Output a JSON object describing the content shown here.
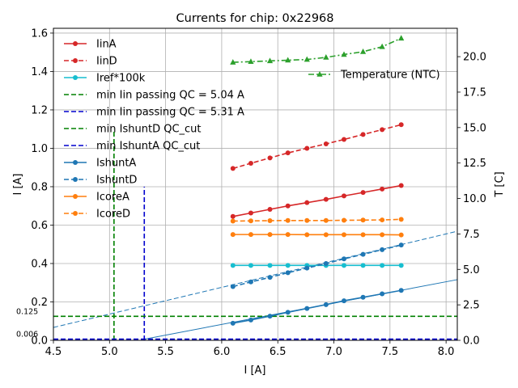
{
  "chart_data": {
    "type": "line",
    "title": "Currents for chip: 0x22968",
    "xlabel": "I [A]",
    "ylabel_left": "I [A]",
    "ylabel_right": "T [C]",
    "xlim": [
      4.5,
      8.1
    ],
    "ylim_left": [
      0.0,
      1.625
    ],
    "ylim_right": [
      0.0,
      22.0
    ],
    "grid": true,
    "x_ticks": [
      4.5,
      5.0,
      5.5,
      6.0,
      6.5,
      7.0,
      7.5,
      8.0
    ],
    "y_ticks_left": [
      0.0,
      0.2,
      0.4,
      0.6,
      0.8,
      1.0,
      1.2,
      1.4,
      1.6
    ],
    "y_ticks_right": [
      0.0,
      2.5,
      5.0,
      7.5,
      10.0,
      12.5,
      15.0,
      17.5,
      20.0
    ],
    "x": [
      6.1,
      6.26,
      6.43,
      6.59,
      6.76,
      6.93,
      7.09,
      7.26,
      7.43,
      7.6
    ],
    "series": [
      {
        "name": "IinA",
        "color": "#d62728",
        "style": "solid",
        "marker": "circle",
        "values": [
          0.645,
          0.663,
          0.682,
          0.7,
          0.717,
          0.734,
          0.752,
          0.77,
          0.788,
          0.806
        ]
      },
      {
        "name": "IinD",
        "color": "#d62728",
        "style": "dashed",
        "marker": "circle",
        "values": [
          0.895,
          0.922,
          0.95,
          0.976,
          1.0,
          1.023,
          1.046,
          1.072,
          1.097,
          1.123
        ]
      },
      {
        "name": "Iref*100k",
        "color": "#17becf",
        "style": "solid",
        "marker": "circle",
        "values": [
          0.39,
          0.39,
          0.39,
          0.39,
          0.39,
          0.39,
          0.39,
          0.39,
          0.39,
          0.39
        ]
      },
      {
        "name": "IshuntA",
        "color": "#1f77b4",
        "style": "solid",
        "marker": "circle",
        "values": [
          0.089,
          0.106,
          0.126,
          0.146,
          0.166,
          0.186,
          0.206,
          0.224,
          0.242,
          0.26
        ]
      },
      {
        "name": "IshuntD",
        "color": "#1f77b4",
        "style": "dashed",
        "marker": "circle",
        "values": [
          0.28,
          0.304,
          0.328,
          0.352,
          0.376,
          0.4,
          0.424,
          0.448,
          0.472,
          0.496
        ]
      },
      {
        "name": "IcoreA",
        "color": "#ff7f0e",
        "style": "solid",
        "marker": "circle",
        "values": [
          0.551,
          0.551,
          0.551,
          0.551,
          0.55,
          0.55,
          0.55,
          0.55,
          0.55,
          0.549
        ]
      },
      {
        "name": "IcoreD",
        "color": "#ff7f0e",
        "style": "dashed",
        "marker": "circle",
        "values": [
          0.621,
          0.622,
          0.623,
          0.624,
          0.624,
          0.624,
          0.625,
          0.626,
          0.627,
          0.63
        ]
      },
      {
        "name": "Temperature (NTC)",
        "color": "#2ca02c",
        "style": "dashdot",
        "marker": "triangle",
        "axis": "right",
        "values": [
          19.6,
          19.65,
          19.7,
          19.75,
          19.8,
          19.95,
          20.15,
          20.35,
          20.7,
          21.3
        ]
      }
    ],
    "threshold_lines": [
      {
        "name": "min Iin passing QC = 5.04 A",
        "orientation": "vertical",
        "x": 5.04,
        "y_top": 1.1,
        "color": "#008000"
      },
      {
        "name": "min Iin passing QC = 5.31 A",
        "orientation": "vertical",
        "x": 5.31,
        "y_top": 0.8,
        "color": "#0000cd"
      },
      {
        "name": "min IshuntD QC_cut",
        "orientation": "horizontal",
        "y": 0.125,
        "color": "#008000"
      },
      {
        "name": "min IshuntA QC_cut",
        "orientation": "horizontal",
        "y": 0.006,
        "color": "#0000cd"
      }
    ],
    "fit_lines": [
      {
        "name": "IshuntD fit",
        "color": "#1f77b4",
        "style": "dashed",
        "points": [
          [
            4.5,
            0.067
          ],
          [
            8.1,
            0.568
          ]
        ]
      },
      {
        "name": "IshuntA fit",
        "color": "#1f77b4",
        "style": "solid",
        "points": [
          [
            5.31,
            0.006
          ],
          [
            8.1,
            0.316
          ]
        ]
      }
    ],
    "annotations": [
      {
        "text": "0.125",
        "x": 4.5,
        "y": 0.125
      },
      {
        "text": "0.006",
        "x": 4.5,
        "y": 0.006
      }
    ],
    "legend_left": [
      {
        "label": "IinA",
        "color": "#d62728",
        "style": "solid",
        "marker": "circle"
      },
      {
        "label": "IinD",
        "color": "#d62728",
        "style": "dashed",
        "marker": "circle"
      },
      {
        "label": "Iref*100k",
        "color": "#17becf",
        "style": "solid",
        "marker": "circle"
      },
      {
        "label": "min Iin passing QC = 5.04 A",
        "color": "#008000",
        "style": "dashed",
        "marker": "none"
      },
      {
        "label": "min Iin passing QC = 5.31 A",
        "color": "#0000cd",
        "style": "dashed",
        "marker": "none"
      },
      {
        "label": "min IshuntD QC_cut",
        "color": "#008000",
        "style": "dashed",
        "marker": "none"
      },
      {
        "label": "min IshuntA QC_cut",
        "color": "#0000cd",
        "style": "dashed",
        "marker": "none"
      },
      {
        "label": "IshuntA",
        "color": "#1f77b4",
        "style": "solid",
        "marker": "circle"
      },
      {
        "label": "IshuntD",
        "color": "#1f77b4",
        "style": "dashed",
        "marker": "circle"
      },
      {
        "label": "IcoreA",
        "color": "#ff7f0e",
        "style": "solid",
        "marker": "circle"
      },
      {
        "label": "IcoreD",
        "color": "#ff7f0e",
        "style": "dashed",
        "marker": "circle"
      }
    ],
    "legend_right": [
      {
        "label": "Temperature (NTC)",
        "color": "#2ca02c",
        "style": "dashdot",
        "marker": "triangle"
      }
    ]
  }
}
